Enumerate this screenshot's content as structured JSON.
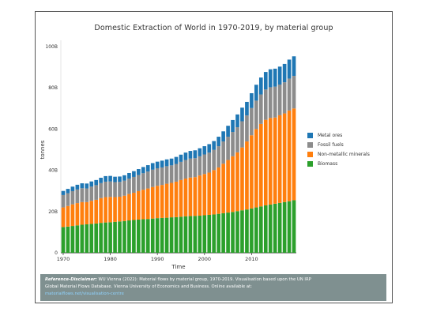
{
  "chart_data": {
    "type": "bar",
    "stacked": true,
    "title": "Domestic Extraction of World in 1970-2019, by material group",
    "xlabel": "Time",
    "ylabel": "tonnes",
    "ylim": [
      0,
      100000000000
    ],
    "y_ticks": [
      "0",
      "20B",
      "40B",
      "60B",
      "80B",
      "100B"
    ],
    "x_ticks": [
      "1970",
      "1980",
      "1990",
      "2000",
      "2010"
    ],
    "grid": false,
    "legend_position": "right",
    "categories": [
      1970,
      1971,
      1972,
      1973,
      1974,
      1975,
      1976,
      1977,
      1978,
      1979,
      1980,
      1981,
      1982,
      1983,
      1984,
      1985,
      1986,
      1987,
      1988,
      1989,
      1990,
      1991,
      1992,
      1993,
      1994,
      1995,
      1996,
      1997,
      1998,
      1999,
      2000,
      2001,
      2002,
      2003,
      2004,
      2005,
      2006,
      2007,
      2008,
      2009,
      2010,
      2011,
      2012,
      2013,
      2014,
      2015,
      2016,
      2017,
      2018,
      2019
    ],
    "series": [
      {
        "name": "Biomass",
        "color": "#2ca02c",
        "values": [
          12.5,
          12.7,
          13.0,
          13.3,
          13.6,
          13.8,
          14.0,
          14.2,
          14.5,
          14.7,
          14.8,
          15.0,
          15.2,
          15.4,
          15.7,
          15.9,
          16.1,
          16.3,
          16.4,
          16.6,
          16.8,
          16.9,
          17.0,
          17.2,
          17.3,
          17.5,
          17.7,
          17.8,
          17.9,
          18.0,
          18.2,
          18.4,
          18.6,
          18.9,
          19.2,
          19.5,
          19.8,
          20.2,
          20.6,
          21.0,
          21.5,
          22.0,
          22.5,
          23.0,
          23.4,
          23.8,
          24.2,
          24.6,
          25.0,
          25.5
        ]
      },
      {
        "name": "Non-metallic minerals",
        "color": "#ff7f0e",
        "values": [
          9.5,
          10.0,
          10.5,
          10.8,
          11.0,
          10.8,
          11.2,
          11.5,
          12.0,
          12.3,
          12.3,
          12.0,
          12.0,
          12.3,
          12.8,
          13.2,
          13.8,
          14.3,
          14.8,
          15.3,
          15.7,
          16.0,
          16.5,
          16.7,
          17.2,
          17.8,
          18.3,
          18.7,
          18.8,
          19.5,
          20.0,
          20.5,
          21.5,
          22.5,
          24.0,
          25.5,
          27.0,
          28.5,
          30.5,
          33.0,
          35.5,
          38.0,
          40.0,
          41.5,
          42.0,
          41.8,
          42.5,
          43.0,
          44.0,
          44.5
        ]
      },
      {
        "name": "Fossil fuels",
        "color": "#8c8c8c",
        "values": [
          6.0,
          6.2,
          6.4,
          6.6,
          6.7,
          6.6,
          6.9,
          7.1,
          7.3,
          7.5,
          7.5,
          7.3,
          7.2,
          7.3,
          7.5,
          7.7,
          7.8,
          8.0,
          8.2,
          8.4,
          8.5,
          8.5,
          8.5,
          8.5,
          8.6,
          8.8,
          9.0,
          9.2,
          9.2,
          9.3,
          9.5,
          9.7,
          9.8,
          10.3,
          10.8,
          11.3,
          11.8,
          12.2,
          12.7,
          12.6,
          13.2,
          13.8,
          14.3,
          14.7,
          14.9,
          15.0,
          14.9,
          15.1,
          15.5,
          15.8
        ]
      },
      {
        "name": "Metal ores",
        "color": "#1f77b4",
        "values": [
          2.0,
          2.1,
          2.2,
          2.3,
          2.4,
          2.4,
          2.5,
          2.5,
          2.6,
          2.7,
          2.7,
          2.6,
          2.6,
          2.6,
          2.7,
          2.8,
          2.9,
          3.0,
          3.1,
          3.2,
          3.2,
          3.3,
          3.3,
          3.3,
          3.4,
          3.5,
          3.6,
          3.7,
          3.8,
          3.9,
          4.0,
          4.1,
          4.3,
          4.6,
          4.9,
          5.3,
          5.8,
          6.2,
          6.6,
          6.6,
          7.2,
          7.7,
          8.2,
          8.5,
          8.7,
          8.7,
          8.7,
          8.9,
          9.2,
          9.5
        ]
      }
    ],
    "units_note": "values in billions of tonnes",
    "legend_order": [
      "Metal ores",
      "Fossil fuels",
      "Non-metallic minerals",
      "Biomass"
    ]
  },
  "footer": {
    "disclaimer_label": "Reference-Disclaimer:",
    "line1": "WU Vienna (2022): Material flows by material group, 1970-2019. Visualisation based upon the UN IRP",
    "line2": "Global Material Flows Database. Vienna University of Economics and Business. Online available at:",
    "link": "materialflows.net/visualisation-centre"
  }
}
